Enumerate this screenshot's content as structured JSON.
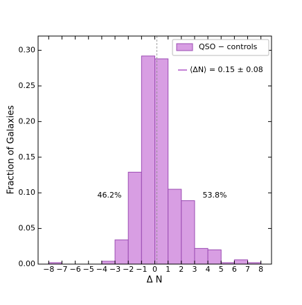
{
  "chart_data": {
    "type": "histogram",
    "xlabel": "Δ N",
    "ylabel": "Fraction of Galaxies",
    "bins": [
      -8,
      -7,
      -6,
      -5,
      -4,
      -3,
      -2,
      -1,
      0,
      1,
      2,
      3,
      4,
      5,
      6,
      7,
      8
    ],
    "series": [
      {
        "name": "QSO − controls",
        "color": "#d89ee3",
        "edgecolor": "#9b4cb3",
        "values": [
          0.002,
          0,
          0,
          0,
          0.004,
          0.034,
          0.129,
          0.292,
          0.288,
          0.105,
          0.089,
          0.022,
          0.02,
          0.002,
          0.006,
          0.002
        ]
      }
    ],
    "mean_line": {
      "name": "⟨ΔN⟩ = 0.15 ± 0.08",
      "value": 0.15,
      "color": "#b057c9"
    },
    "annotations": [
      "46.2%",
      "53.8%"
    ],
    "xlim": [
      -8.8,
      8.8
    ],
    "ylim": [
      0,
      0.32
    ],
    "xticks": [
      {
        "value": -8,
        "label": "−8"
      },
      {
        "value": -7,
        "label": "−7"
      },
      {
        "value": -6,
        "label": "−6"
      },
      {
        "value": -5,
        "label": "−5"
      },
      {
        "value": -4,
        "label": "−4"
      },
      {
        "value": -3,
        "label": "−3"
      },
      {
        "value": -2,
        "label": "−2"
      },
      {
        "value": -1,
        "label": "−1"
      },
      0,
      1,
      2,
      3,
      4,
      5,
      6,
      7,
      8
    ],
    "yticks": [
      {
        "value": 0,
        "label": "0.00"
      },
      0.05,
      {
        "value": 0.1,
        "label": "0.10"
      },
      0.15,
      {
        "value": 0.2,
        "label": "0.20"
      },
      0.25,
      {
        "value": 0.3,
        "label": "0.30"
      }
    ],
    "legend": "upper right"
  }
}
